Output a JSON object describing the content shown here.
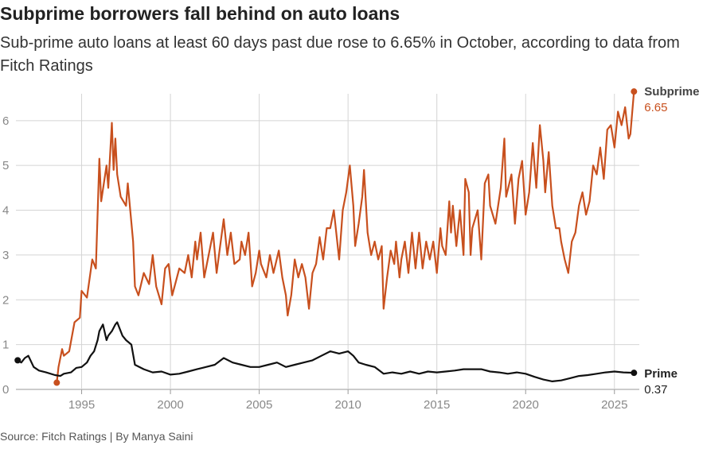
{
  "header": {
    "title": "Subprime borrowers fall behind on auto loans",
    "subtitle": "Sub-prime auto loans at least 60 days past due rose to 6.65% in October, according to data from Fitch Ratings"
  },
  "footer": {
    "source": "Source: Fitch Ratings | By Manya Saini"
  },
  "colors": {
    "subprime": "#c8501e",
    "prime": "#111111",
    "grid": "#d4d4d4",
    "tick": "#888888"
  },
  "chart_data": {
    "type": "line",
    "title": "Subprime borrowers fall behind on auto loans",
    "xlabel": "",
    "ylabel": "",
    "xlim": [
      1991.3,
      2026.4
    ],
    "ylim": [
      0,
      6.6
    ],
    "x_ticks": [
      "1995",
      "2000",
      "2005",
      "2010",
      "2015",
      "2020",
      "2025"
    ],
    "y_ticks": [
      "0",
      "1",
      "2",
      "3",
      "4",
      "5",
      "6"
    ],
    "grid": "vertical and horizontal",
    "legend": "direct labels at line ends (right)",
    "series": [
      {
        "name": "Subprime",
        "end_value_label": "6.65",
        "points": [
          [
            1993.6,
            0.15
          ],
          [
            1993.7,
            0.5
          ],
          [
            1993.9,
            0.9
          ],
          [
            1994.0,
            0.75
          ],
          [
            1994.3,
            0.85
          ],
          [
            1994.6,
            1.5
          ],
          [
            1994.9,
            1.6
          ],
          [
            1995.0,
            2.2
          ],
          [
            1995.3,
            2.05
          ],
          [
            1995.6,
            2.9
          ],
          [
            1995.8,
            2.7
          ],
          [
            1996.0,
            5.15
          ],
          [
            1996.1,
            4.2
          ],
          [
            1996.4,
            5.0
          ],
          [
            1996.5,
            4.5
          ],
          [
            1996.7,
            5.95
          ],
          [
            1996.8,
            4.9
          ],
          [
            1996.9,
            5.6
          ],
          [
            1997.0,
            4.8
          ],
          [
            1997.2,
            4.3
          ],
          [
            1997.5,
            4.1
          ],
          [
            1997.6,
            4.6
          ],
          [
            1997.9,
            3.3
          ],
          [
            1998.0,
            2.3
          ],
          [
            1998.2,
            2.1
          ],
          [
            1998.5,
            2.6
          ],
          [
            1998.8,
            2.35
          ],
          [
            1999.0,
            3.0
          ],
          [
            1999.2,
            2.3
          ],
          [
            1999.5,
            1.9
          ],
          [
            1999.7,
            2.7
          ],
          [
            1999.9,
            2.8
          ],
          [
            2000.1,
            2.1
          ],
          [
            2000.3,
            2.4
          ],
          [
            2000.5,
            2.7
          ],
          [
            2000.8,
            2.6
          ],
          [
            2001.0,
            3.0
          ],
          [
            2001.2,
            2.5
          ],
          [
            2001.4,
            3.3
          ],
          [
            2001.5,
            2.9
          ],
          [
            2001.7,
            3.5
          ],
          [
            2001.9,
            2.5
          ],
          [
            2002.2,
            3.1
          ],
          [
            2002.4,
            3.5
          ],
          [
            2002.6,
            2.6
          ],
          [
            2002.8,
            3.2
          ],
          [
            2003.0,
            3.8
          ],
          [
            2003.2,
            3.0
          ],
          [
            2003.4,
            3.5
          ],
          [
            2003.6,
            2.8
          ],
          [
            2003.9,
            2.9
          ],
          [
            2004.0,
            3.3
          ],
          [
            2004.2,
            3.0
          ],
          [
            2004.4,
            3.5
          ],
          [
            2004.6,
            2.3
          ],
          [
            2004.8,
            2.6
          ],
          [
            2005.0,
            3.1
          ],
          [
            2005.1,
            2.8
          ],
          [
            2005.4,
            2.5
          ],
          [
            2005.6,
            3.0
          ],
          [
            2005.8,
            2.6
          ],
          [
            2006.1,
            3.1
          ],
          [
            2006.3,
            2.5
          ],
          [
            2006.5,
            2.1
          ],
          [
            2006.6,
            1.65
          ],
          [
            2006.8,
            2.1
          ],
          [
            2007.0,
            2.9
          ],
          [
            2007.2,
            2.5
          ],
          [
            2007.4,
            2.8
          ],
          [
            2007.6,
            2.5
          ],
          [
            2007.8,
            1.8
          ],
          [
            2008.0,
            2.6
          ],
          [
            2008.2,
            2.8
          ],
          [
            2008.4,
            3.4
          ],
          [
            2008.6,
            2.9
          ],
          [
            2008.8,
            3.6
          ],
          [
            2009.0,
            3.6
          ],
          [
            2009.2,
            4.0
          ],
          [
            2009.5,
            2.9
          ],
          [
            2009.7,
            4.0
          ],
          [
            2009.9,
            4.4
          ],
          [
            2010.1,
            5.0
          ],
          [
            2010.3,
            4.1
          ],
          [
            2010.4,
            3.2
          ],
          [
            2010.6,
            3.7
          ],
          [
            2010.8,
            4.3
          ],
          [
            2010.9,
            4.9
          ],
          [
            2011.1,
            3.5
          ],
          [
            2011.3,
            3.0
          ],
          [
            2011.5,
            3.3
          ],
          [
            2011.7,
            2.9
          ],
          [
            2011.9,
            3.2
          ],
          [
            2012.0,
            1.8
          ],
          [
            2012.2,
            2.5
          ],
          [
            2012.4,
            3.1
          ],
          [
            2012.6,
            2.8
          ],
          [
            2012.7,
            3.3
          ],
          [
            2012.9,
            2.5
          ],
          [
            2013.0,
            2.9
          ],
          [
            2013.2,
            3.3
          ],
          [
            2013.4,
            2.6
          ],
          [
            2013.6,
            3.5
          ],
          [
            2013.8,
            2.7
          ],
          [
            2014.0,
            3.5
          ],
          [
            2014.2,
            2.7
          ],
          [
            2014.4,
            3.3
          ],
          [
            2014.6,
            2.9
          ],
          [
            2014.8,
            3.3
          ],
          [
            2015.0,
            2.6
          ],
          [
            2015.2,
            3.6
          ],
          [
            2015.3,
            3.2
          ],
          [
            2015.5,
            3.0
          ],
          [
            2015.7,
            4.2
          ],
          [
            2015.8,
            3.5
          ],
          [
            2015.9,
            4.1
          ],
          [
            2016.1,
            3.2
          ],
          [
            2016.3,
            4.0
          ],
          [
            2016.5,
            3.0
          ],
          [
            2016.6,
            4.7
          ],
          [
            2016.8,
            4.4
          ],
          [
            2016.9,
            3.0
          ],
          [
            2017.0,
            3.6
          ],
          [
            2017.3,
            4.0
          ],
          [
            2017.5,
            2.9
          ],
          [
            2017.7,
            4.6
          ],
          [
            2017.9,
            4.8
          ],
          [
            2018.0,
            4.1
          ],
          [
            2018.3,
            3.7
          ],
          [
            2018.6,
            4.5
          ],
          [
            2018.8,
            5.6
          ],
          [
            2018.9,
            4.3
          ],
          [
            2019.2,
            4.8
          ],
          [
            2019.4,
            3.7
          ],
          [
            2019.6,
            4.7
          ],
          [
            2019.8,
            5.1
          ],
          [
            2020.0,
            3.9
          ],
          [
            2020.2,
            4.4
          ],
          [
            2020.4,
            5.5
          ],
          [
            2020.6,
            4.5
          ],
          [
            2020.8,
            5.9
          ],
          [
            2021.0,
            5.1
          ],
          [
            2021.1,
            4.4
          ],
          [
            2021.3,
            5.3
          ],
          [
            2021.5,
            4.1
          ],
          [
            2021.7,
            3.6
          ],
          [
            2021.9,
            3.6
          ],
          [
            2022.0,
            3.3
          ],
          [
            2022.2,
            2.9
          ],
          [
            2022.4,
            2.6
          ],
          [
            2022.6,
            3.3
          ],
          [
            2022.8,
            3.5
          ],
          [
            2023.0,
            4.1
          ],
          [
            2023.2,
            4.4
          ],
          [
            2023.4,
            3.9
          ],
          [
            2023.6,
            4.2
          ],
          [
            2023.8,
            5.0
          ],
          [
            2024.0,
            4.8
          ],
          [
            2024.2,
            5.4
          ],
          [
            2024.4,
            4.7
          ],
          [
            2024.6,
            5.8
          ],
          [
            2024.8,
            5.9
          ],
          [
            2025.0,
            5.4
          ],
          [
            2025.2,
            6.2
          ],
          [
            2025.4,
            5.9
          ],
          [
            2025.6,
            6.3
          ],
          [
            2025.8,
            5.6
          ],
          [
            2025.9,
            5.7
          ],
          [
            2026.1,
            6.65
          ]
        ]
      },
      {
        "name": "Prime",
        "end_value_label": "0.37",
        "points": [
          [
            1991.4,
            0.65
          ],
          [
            1991.6,
            0.6
          ],
          [
            1991.8,
            0.7
          ],
          [
            1992.0,
            0.75
          ],
          [
            1992.3,
            0.5
          ],
          [
            1992.6,
            0.42
          ],
          [
            1993.0,
            0.38
          ],
          [
            1993.5,
            0.32
          ],
          [
            1993.8,
            0.3
          ],
          [
            1994.0,
            0.35
          ],
          [
            1994.4,
            0.38
          ],
          [
            1994.7,
            0.48
          ],
          [
            1995.0,
            0.5
          ],
          [
            1995.3,
            0.6
          ],
          [
            1995.5,
            0.75
          ],
          [
            1995.7,
            0.85
          ],
          [
            1995.9,
            1.1
          ],
          [
            1996.0,
            1.3
          ],
          [
            1996.2,
            1.45
          ],
          [
            1996.4,
            1.1
          ],
          [
            1996.5,
            1.2
          ],
          [
            1996.7,
            1.3
          ],
          [
            1996.9,
            1.45
          ],
          [
            1997.0,
            1.5
          ],
          [
            1997.3,
            1.2
          ],
          [
            1997.5,
            1.1
          ],
          [
            1997.8,
            1.0
          ],
          [
            1998.0,
            0.55
          ],
          [
            1998.5,
            0.45
          ],
          [
            1999.0,
            0.38
          ],
          [
            1999.5,
            0.4
          ],
          [
            2000.0,
            0.33
          ],
          [
            2000.5,
            0.35
          ],
          [
            2001.0,
            0.4
          ],
          [
            2001.5,
            0.45
          ],
          [
            2002.0,
            0.5
          ],
          [
            2002.5,
            0.55
          ],
          [
            2003.0,
            0.7
          ],
          [
            2003.5,
            0.6
          ],
          [
            2004.0,
            0.55
          ],
          [
            2004.5,
            0.5
          ],
          [
            2005.0,
            0.5
          ],
          [
            2005.5,
            0.55
          ],
          [
            2006.0,
            0.6
          ],
          [
            2006.5,
            0.5
          ],
          [
            2007.0,
            0.55
          ],
          [
            2007.5,
            0.6
          ],
          [
            2008.0,
            0.65
          ],
          [
            2008.5,
            0.75
          ],
          [
            2009.0,
            0.85
          ],
          [
            2009.5,
            0.8
          ],
          [
            2010.0,
            0.85
          ],
          [
            2010.3,
            0.75
          ],
          [
            2010.6,
            0.6
          ],
          [
            2011.0,
            0.55
          ],
          [
            2011.5,
            0.5
          ],
          [
            2012.0,
            0.35
          ],
          [
            2012.5,
            0.38
          ],
          [
            2013.0,
            0.35
          ],
          [
            2013.5,
            0.4
          ],
          [
            2014.0,
            0.35
          ],
          [
            2014.5,
            0.4
          ],
          [
            2015.0,
            0.38
          ],
          [
            2015.5,
            0.4
          ],
          [
            2016.0,
            0.42
          ],
          [
            2016.5,
            0.45
          ],
          [
            2017.0,
            0.45
          ],
          [
            2017.5,
            0.45
          ],
          [
            2018.0,
            0.4
          ],
          [
            2018.5,
            0.38
          ],
          [
            2019.0,
            0.35
          ],
          [
            2019.5,
            0.38
          ],
          [
            2020.0,
            0.35
          ],
          [
            2020.5,
            0.28
          ],
          [
            2021.0,
            0.22
          ],
          [
            2021.5,
            0.18
          ],
          [
            2022.0,
            0.2
          ],
          [
            2022.5,
            0.25
          ],
          [
            2023.0,
            0.3
          ],
          [
            2023.5,
            0.32
          ],
          [
            2024.0,
            0.35
          ],
          [
            2024.5,
            0.38
          ],
          [
            2025.0,
            0.4
          ],
          [
            2025.5,
            0.38
          ],
          [
            2026.1,
            0.37
          ]
        ]
      }
    ]
  }
}
